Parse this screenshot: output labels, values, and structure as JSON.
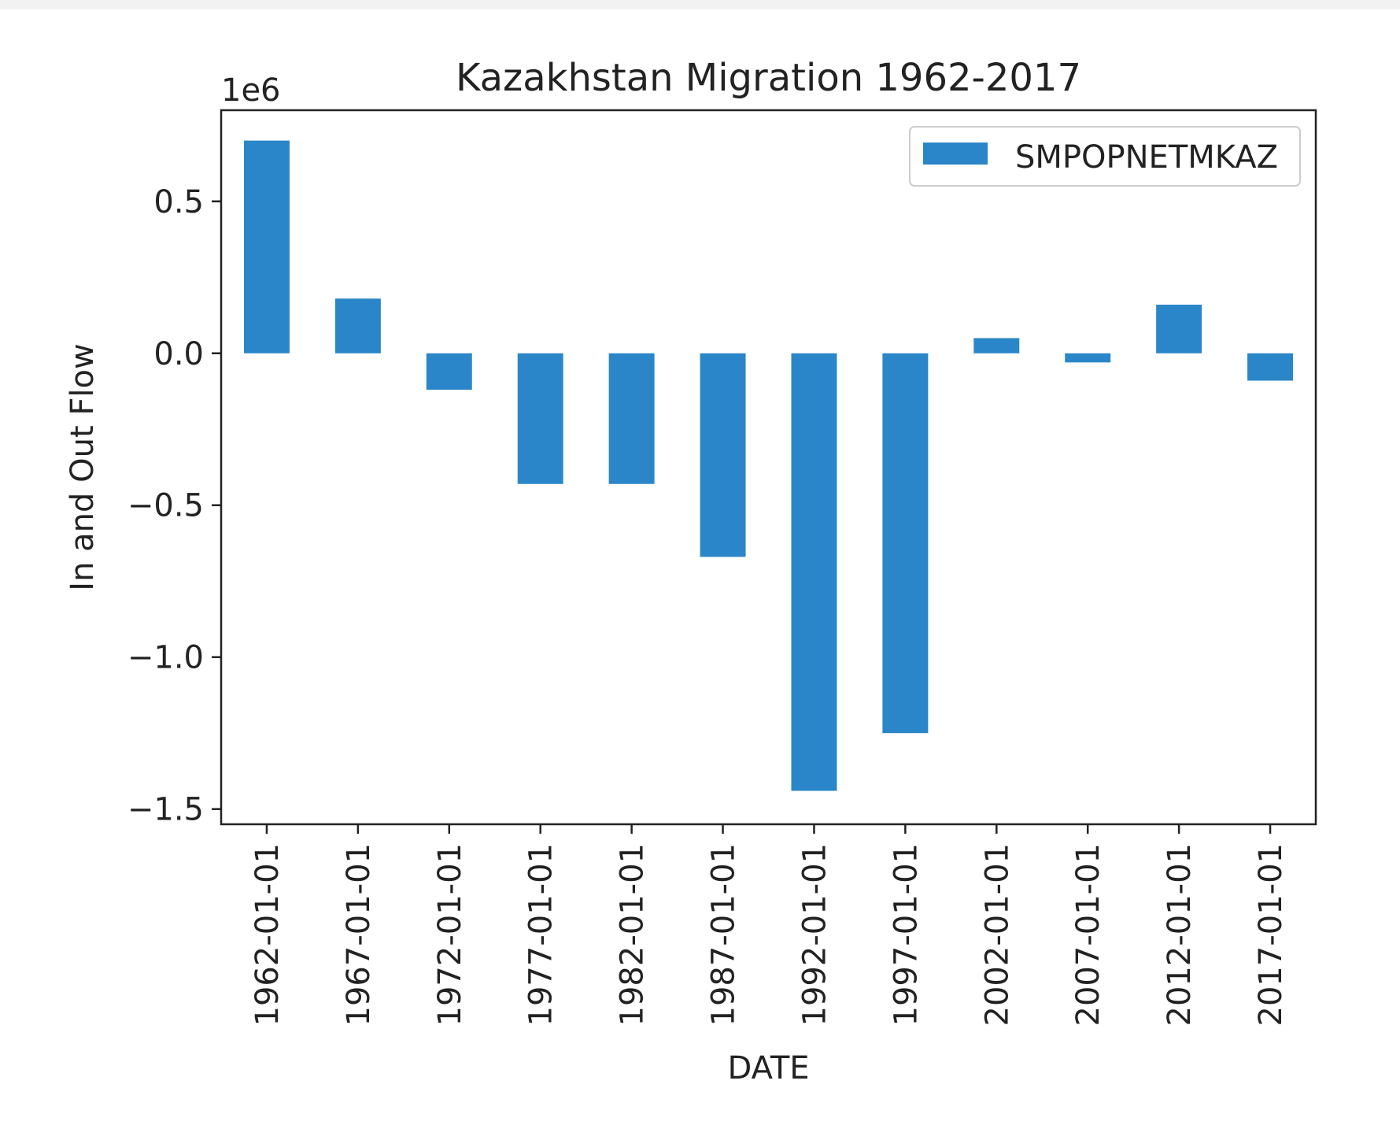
{
  "chart_data": {
    "type": "bar",
    "title": "Kazakhstan Migration 1962-2017",
    "xlabel": "DATE",
    "ylabel": "In and Out Flow",
    "offset_label": "1e6",
    "categories": [
      "1962-01-01",
      "1967-01-01",
      "1972-01-01",
      "1977-01-01",
      "1982-01-01",
      "1987-01-01",
      "1992-01-01",
      "1997-01-01",
      "2002-01-01",
      "2007-01-01",
      "2012-01-01",
      "2017-01-01"
    ],
    "series": [
      {
        "name": "SMPOPNETMKAZ",
        "values": [
          0.7,
          0.18,
          -0.12,
          -0.43,
          -0.43,
          -0.67,
          -1.44,
          -1.25,
          0.05,
          -0.03,
          0.16,
          -0.09
        ]
      }
    ],
    "ylim": [
      -1.55,
      0.8
    ],
    "yticks": [
      0.5,
      0.0,
      -0.5,
      -1.0,
      -1.5
    ],
    "ytick_labels": [
      "0.5",
      "0.0",
      "−0.5",
      "−1.0",
      "−1.5"
    ],
    "legend_position": "top-right",
    "grid": false,
    "colors": {
      "bar": "#2a86c8",
      "axis": "#222222"
    }
  }
}
